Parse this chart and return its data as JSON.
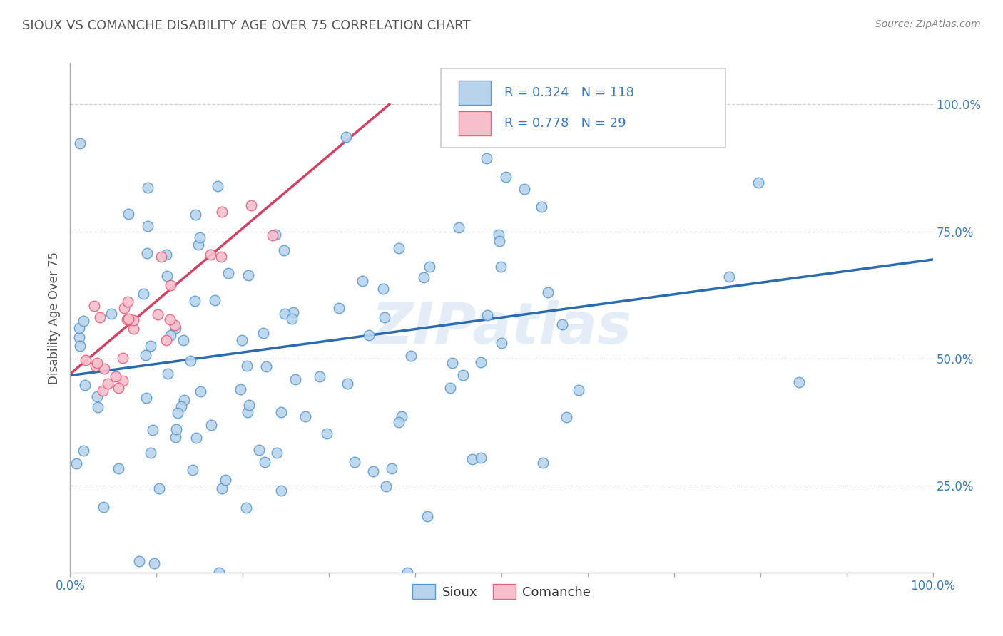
{
  "title": "SIOUX VS COMANCHE DISABILITY AGE OVER 75 CORRELATION CHART",
  "source_text": "Source: ZipAtlas.com",
  "ylabel": "Disability Age Over 75",
  "watermark": "ZIPatlas",
  "legend_labels": [
    "Sioux",
    "Comanche"
  ],
  "sioux_R": 0.324,
  "sioux_N": 118,
  "comanche_R": 0.778,
  "comanche_N": 29,
  "sioux_color": "#b8d4ec",
  "comanche_color": "#f7bfcc",
  "sioux_edge_color": "#5b9bd5",
  "comanche_edge_color": "#e8607a",
  "sioux_line_color": "#2b6cb0",
  "comanche_line_color": "#d44060",
  "legend_text_color": "#3a7bbf",
  "title_color": "#555555",
  "background_color": "#ffffff",
  "grid_color": "#cccccc",
  "xlim": [
    0.0,
    1.0
  ],
  "ylim": [
    0.08,
    1.08
  ],
  "x_ticks": [
    0.0,
    0.1,
    0.2,
    0.3,
    0.4,
    0.5,
    0.6,
    0.7,
    0.8,
    0.9,
    1.0
  ],
  "x_tick_labels_show": [
    "0.0%",
    "",
    "",
    "",
    "",
    "",
    "",
    "",
    "",
    "",
    "100.0%"
  ],
  "y_ticks": [
    0.25,
    0.5,
    0.75,
    1.0
  ],
  "y_tick_labels": [
    "25.0%",
    "50.0%",
    "75.0%",
    "100.0%"
  ],
  "sioux_line_x": [
    0.0,
    1.0
  ],
  "sioux_line_y": [
    0.467,
    0.695
  ],
  "comanche_line_x": [
    0.0,
    0.37
  ],
  "comanche_line_y": [
    0.47,
    1.0
  ]
}
